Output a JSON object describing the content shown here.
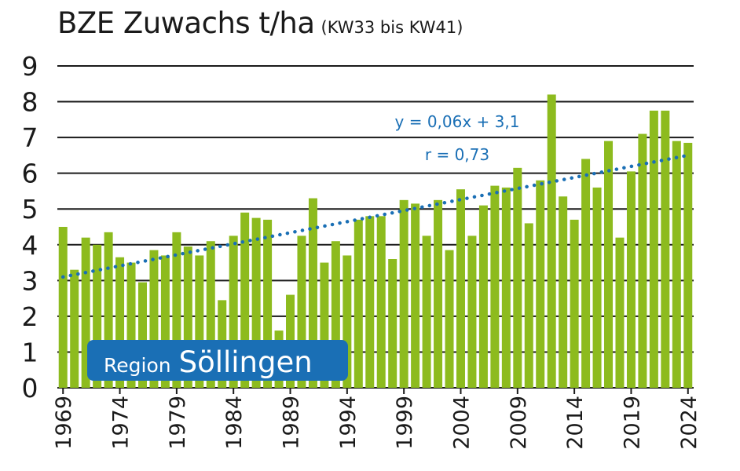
{
  "title": "BZE Zuwachs t/ha",
  "subtitle": "(KW33 bis KW41)",
  "colors": {
    "bar": "#8dbb1e",
    "trend": "#1a6fb5",
    "grid": "#1a1a1a",
    "badge": "#1a6fb5"
  },
  "badge": {
    "word1": "Region",
    "word2": "Söllingen"
  },
  "chart_data": {
    "type": "bar",
    "x_tick_labels": [
      "1969",
      "1974",
      "1979",
      "1984",
      "1989",
      "1994",
      "1999",
      "2004",
      "2009",
      "2014",
      "2019",
      "2024"
    ],
    "y_tick_labels": [
      "0",
      "1",
      "2",
      "3",
      "4",
      "5",
      "6",
      "7",
      "8",
      "9"
    ],
    "ylim": [
      0,
      9
    ],
    "grid": "horizontal",
    "series": [
      {
        "x": [
          1969,
          1970,
          1971,
          1972,
          1973,
          1974,
          1975,
          1976,
          1977,
          1978,
          1979,
          1980,
          1981,
          1982,
          1983,
          1984,
          1985,
          1986,
          1987,
          1988,
          1989,
          1990,
          1991,
          1992,
          1993,
          1994,
          1995,
          1996,
          1997,
          1998,
          1999,
          2000,
          2001,
          2002,
          2003,
          2004,
          2005,
          2006,
          2007,
          2008,
          2009,
          2010,
          2011,
          2012,
          2013,
          2014,
          2015,
          2016,
          2017,
          2018,
          2019,
          2020,
          2021,
          2022,
          2023,
          2024
        ],
        "values": [
          4.5,
          3.3,
          4.2,
          4.0,
          4.35,
          3.65,
          3.5,
          2.95,
          3.85,
          3.7,
          4.35,
          3.95,
          3.7,
          4.1,
          2.45,
          4.25,
          4.9,
          4.75,
          4.7,
          1.6,
          2.6,
          4.25,
          5.3,
          3.5,
          4.1,
          3.7,
          4.7,
          4.8,
          4.8,
          3.6,
          5.25,
          5.15,
          4.25,
          5.25,
          3.85,
          5.55,
          4.25,
          5.1,
          5.65,
          5.6,
          6.15,
          4.6,
          5.8,
          8.2,
          5.35,
          4.7,
          6.4,
          5.6,
          6.9,
          4.2,
          6.05,
          7.1,
          7.75,
          7.75,
          6.9,
          6.85
        ]
      }
    ],
    "trendline": {
      "type": "linear",
      "equation": "y = 0,06x + 3,1",
      "r_label": "r = 0,73",
      "x_start": 1969,
      "y_start": 3.1,
      "x_end": 2024,
      "y_end": 6.5
    }
  }
}
